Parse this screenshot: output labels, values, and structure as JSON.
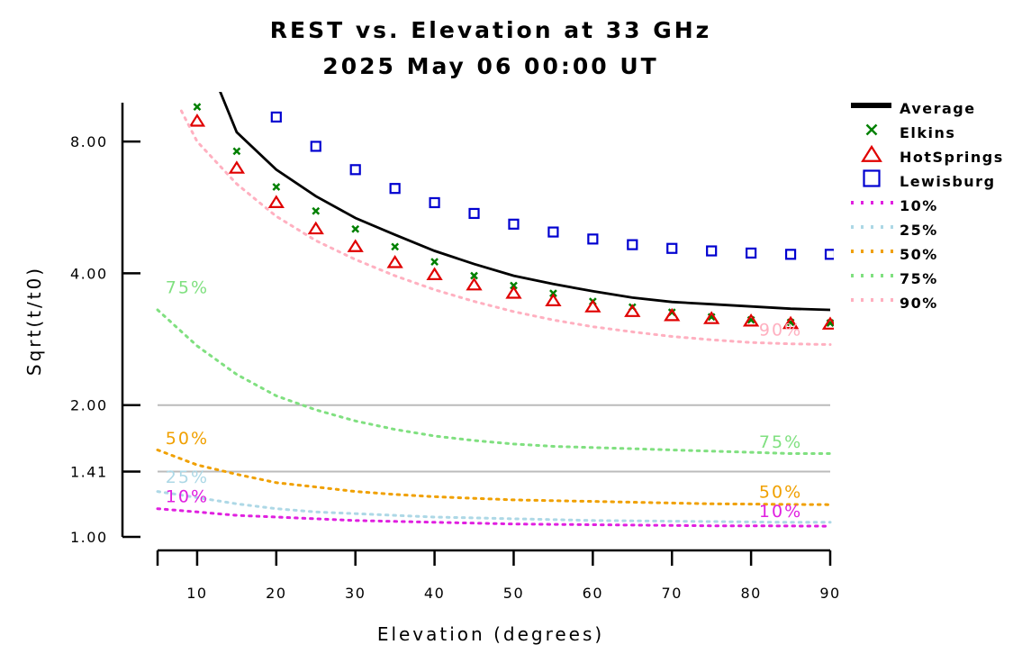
{
  "chart_data": {
    "type": "line",
    "title": "REST vs. Elevation at 33 GHz",
    "subtitle": "2025 May 06 00:00 UT",
    "xlabel": "Elevation (degrees)",
    "ylabel": "Sqrt(t/t0)",
    "xlim": [
      5,
      90
    ],
    "ylim": [
      1.0,
      10.0
    ],
    "y_scale": "log",
    "x_ticks": [
      10,
      20,
      30,
      40,
      50,
      60,
      70,
      80,
      90
    ],
    "y_ticks": [
      1.0,
      1.41,
      2.0,
      4.0,
      8.0
    ],
    "y_tick_labels": [
      "1.00",
      "1.41",
      "2.00",
      "4.00",
      "8.00"
    ],
    "reference_lines": [
      1.41,
      2.0
    ],
    "legend_position": "top-right, outside plot",
    "series": [
      {
        "name": "Average",
        "style": "line",
        "color": "#000000",
        "x": [
          10,
          15,
          20,
          25,
          30,
          35,
          40,
          45,
          50,
          55,
          60,
          65,
          70,
          75,
          80,
          85,
          90
        ],
        "y": [
          14.0,
          8.4,
          6.9,
          6.0,
          5.35,
          4.9,
          4.5,
          4.2,
          3.95,
          3.78,
          3.64,
          3.52,
          3.44,
          3.4,
          3.36,
          3.32,
          3.3
        ]
      },
      {
        "name": "Elkins",
        "style": "x-marker",
        "color": "#008000",
        "x": [
          10,
          15,
          20,
          25,
          30,
          35,
          40,
          45,
          50,
          55,
          60,
          65,
          70,
          75,
          80,
          85,
          90
        ],
        "y": [
          9.6,
          7.6,
          6.3,
          5.55,
          5.05,
          4.6,
          4.25,
          3.95,
          3.75,
          3.6,
          3.45,
          3.35,
          3.26,
          3.18,
          3.13,
          3.09,
          3.08
        ]
      },
      {
        "name": "HotSprings",
        "style": "triangle-marker",
        "color": "#e00000",
        "x": [
          10,
          15,
          20,
          25,
          30,
          35,
          40,
          45,
          50,
          55,
          60,
          65,
          70,
          75,
          80,
          85,
          90
        ],
        "y": [
          8.9,
          6.95,
          5.8,
          5.05,
          4.6,
          4.23,
          3.97,
          3.76,
          3.6,
          3.46,
          3.35,
          3.27,
          3.2,
          3.15,
          3.11,
          3.07,
          3.06
        ]
      },
      {
        "name": "Lewisburg",
        "style": "square-marker",
        "color": "#0000d0",
        "x": [
          20,
          25,
          30,
          35,
          40,
          45,
          50,
          55,
          60,
          65,
          70,
          75,
          80,
          85,
          90
        ],
        "y": [
          9.1,
          7.8,
          6.9,
          6.25,
          5.8,
          5.48,
          5.18,
          4.97,
          4.79,
          4.65,
          4.56,
          4.5,
          4.45,
          4.42,
          4.42
        ]
      },
      {
        "name": "10%",
        "style": "dotted",
        "color": "#e020e0",
        "x": [
          5,
          10,
          15,
          20,
          25,
          30,
          35,
          40,
          45,
          50,
          55,
          60,
          65,
          70,
          75,
          80,
          85,
          90
        ],
        "y": [
          1.16,
          1.14,
          1.12,
          1.11,
          1.1,
          1.09,
          1.085,
          1.08,
          1.075,
          1.07,
          1.068,
          1.066,
          1.064,
          1.062,
          1.06,
          1.06,
          1.059,
          1.058
        ]
      },
      {
        "name": "25%",
        "style": "dotted",
        "color": "#add8e6",
        "x": [
          5,
          10,
          15,
          20,
          25,
          30,
          35,
          40,
          45,
          50,
          55,
          60,
          65,
          70,
          75,
          80,
          85,
          90
        ],
        "y": [
          1.27,
          1.23,
          1.19,
          1.16,
          1.14,
          1.13,
          1.12,
          1.11,
          1.105,
          1.1,
          1.095,
          1.09,
          1.088,
          1.086,
          1.084,
          1.082,
          1.08,
          1.08
        ]
      },
      {
        "name": "50%",
        "style": "dotted",
        "color": "#f0a000",
        "x": [
          5,
          10,
          15,
          20,
          25,
          30,
          35,
          40,
          45,
          50,
          55,
          60,
          65,
          70,
          75,
          80,
          85,
          90
        ],
        "y": [
          1.58,
          1.46,
          1.39,
          1.33,
          1.3,
          1.27,
          1.25,
          1.235,
          1.225,
          1.215,
          1.21,
          1.205,
          1.2,
          1.195,
          1.19,
          1.188,
          1.186,
          1.185
        ]
      },
      {
        "name": "75%",
        "style": "dotted",
        "color": "#80e080",
        "x": [
          5,
          10,
          15,
          20,
          25,
          30,
          35,
          40,
          45,
          50,
          55,
          60,
          65,
          70,
          75,
          80,
          85,
          90
        ],
        "y": [
          3.3,
          2.73,
          2.35,
          2.1,
          1.95,
          1.84,
          1.76,
          1.7,
          1.66,
          1.63,
          1.61,
          1.6,
          1.59,
          1.58,
          1.57,
          1.56,
          1.55,
          1.55
        ]
      },
      {
        "name": "90%",
        "style": "dotted",
        "color": "#ffb0c0",
        "x": [
          8,
          10,
          15,
          20,
          25,
          30,
          35,
          40,
          45,
          50,
          55,
          60,
          65,
          70,
          75,
          80,
          85,
          90
        ],
        "y": [
          9.4,
          8.0,
          6.4,
          5.4,
          4.75,
          4.3,
          3.95,
          3.67,
          3.45,
          3.27,
          3.13,
          3.02,
          2.94,
          2.87,
          2.82,
          2.78,
          2.76,
          2.75
        ]
      }
    ],
    "annotations": [
      {
        "text": "75%",
        "x": 6,
        "y": 3.6,
        "color": "#80e080"
      },
      {
        "text": "50%",
        "x": 6,
        "y": 1.63,
        "color": "#f0a000"
      },
      {
        "text": "25%",
        "x": 6,
        "y": 1.33,
        "color": "#add8e6"
      },
      {
        "text": "10%",
        "x": 6,
        "y": 1.2,
        "color": "#e020e0"
      },
      {
        "text": "90%",
        "x": 81,
        "y": 2.88,
        "color": "#ffb0c0"
      },
      {
        "text": "75%",
        "x": 81,
        "y": 1.6,
        "color": "#80e080"
      },
      {
        "text": "50%",
        "x": 81,
        "y": 1.23,
        "color": "#f0a000"
      },
      {
        "text": "10%",
        "x": 81,
        "y": 1.11,
        "color": "#e020e0"
      }
    ]
  }
}
